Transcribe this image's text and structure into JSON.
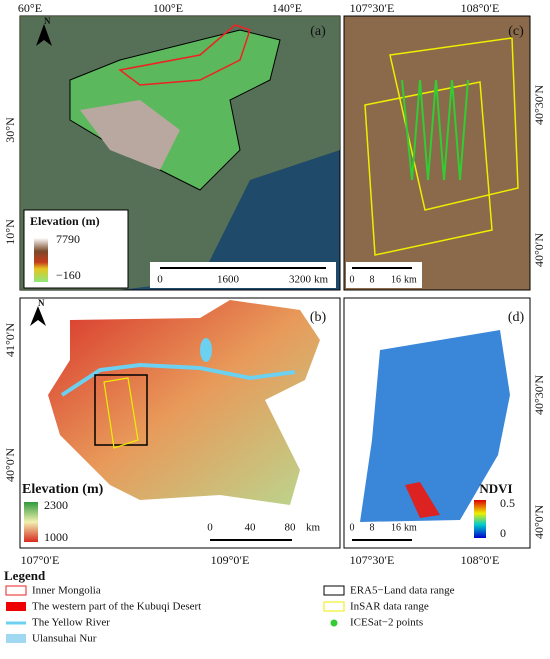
{
  "panels": [
    {
      "letter": "(a)",
      "top_labels": [
        "60°E",
        "100°E",
        "140°E"
      ],
      "side_labels": [
        "30°N",
        "10°N"
      ],
      "north": "N",
      "legend": {
        "title": "Elevation (m)",
        "high": 7790,
        "low": "−160"
      },
      "scale": {
        "ticks": [
          0,
          1600,
          3200
        ],
        "unit": "km"
      }
    },
    {
      "letter": "(c)",
      "top_labels": [
        "107°30′E",
        "108°0′E"
      ],
      "side_labels": [
        "40°30′N",
        "40°0′N"
      ],
      "scale": {
        "ticks": [
          0,
          8,
          16
        ],
        "unit": "km"
      }
    },
    {
      "letter": "(b)",
      "bottom_labels": [
        "107°0′E",
        "109°0′E"
      ],
      "side_labels": [
        "41°0′N",
        "40°0′N"
      ],
      "north": "N",
      "legend": {
        "title": "Elevation (m)",
        "high": 2300,
        "low": 1000
      },
      "scale": {
        "ticks": [
          0,
          40,
          80
        ],
        "unit": "km"
      }
    },
    {
      "letter": "(d)",
      "bottom_labels": [
        "107°30′E",
        "108°0′E"
      ],
      "side_labels": [
        "40°30′N",
        "40°0′N"
      ],
      "legend": {
        "title": "NDVI",
        "high": 0.5,
        "low": 0
      },
      "scale": {
        "ticks": [
          0,
          8,
          16
        ],
        "unit": "km"
      }
    }
  ],
  "legend": {
    "title": "Legend",
    "items": [
      "Inner Mongolia",
      "The western part of the Kubuqi Desert",
      "The Yellow River",
      "Ulansuhai Nur",
      "ERA5−Land data range",
      "InSAR data range",
      "ICESat−2 points"
    ]
  }
}
